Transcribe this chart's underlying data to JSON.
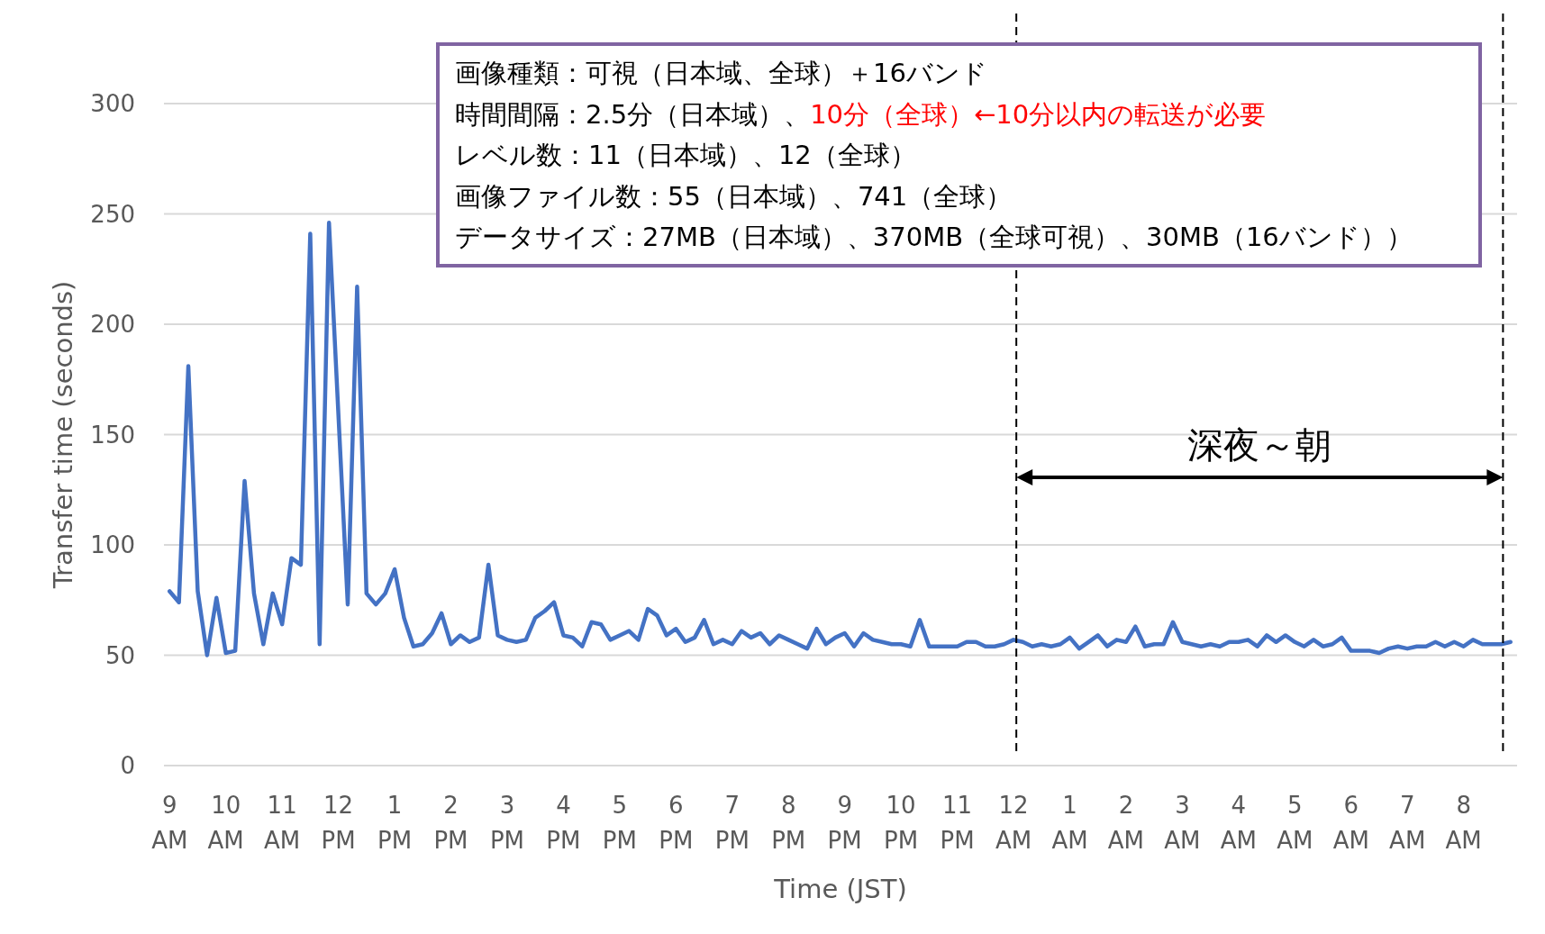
{
  "chart_data": {
    "type": "line",
    "xlabel": "Time (JST)",
    "ylabel": "Transfer time (seconds)",
    "grid": "y",
    "xlim": [
      "--01-22T08:54",
      "--01-23T08:57"
    ],
    "ylim": [
      0,
      300
    ],
    "yticks": [
      0,
      50,
      100,
      150,
      200,
      250,
      300
    ],
    "xticks": [
      {
        "value": "--01-22T09:00",
        "label": "9 AM"
      },
      {
        "value": "--01-22T10:00",
        "label": "10 AM"
      },
      {
        "value": "--01-22T11:00",
        "label": "11 AM"
      },
      {
        "value": "--01-22T12:00",
        "label": "12 PM"
      },
      {
        "value": "--01-22T13:00",
        "label": "1 PM"
      },
      {
        "value": "--01-22T14:00",
        "label": "2 PM"
      },
      {
        "value": "--01-22T15:00",
        "label": "3 PM"
      },
      {
        "value": "--01-22T16:00",
        "label": "4 PM"
      },
      {
        "value": "--01-22T17:00",
        "label": "5 PM"
      },
      {
        "value": "--01-22T18:00",
        "label": "6 PM"
      },
      {
        "value": "--01-22T19:00",
        "label": "7 PM"
      },
      {
        "value": "--01-22T20:00",
        "label": "8 PM"
      },
      {
        "value": "--01-22T21:00",
        "label": "9 PM"
      },
      {
        "value": "--01-22T22:00",
        "label": "10 PM"
      },
      {
        "value": "--01-22T23:00",
        "label": "11 PM"
      },
      {
        "value": "--01-23T00:00",
        "label": "12 AM"
      },
      {
        "value": "--01-23T01:00",
        "label": "1 AM"
      },
      {
        "value": "--01-23T02:00",
        "label": "2 AM"
      },
      {
        "value": "--01-23T03:00",
        "label": "3 AM"
      },
      {
        "value": "--01-23T04:00",
        "label": "4 AM"
      },
      {
        "value": "--01-23T05:00",
        "label": "5 AM"
      },
      {
        "value": "--01-23T06:00",
        "label": "6 AM"
      },
      {
        "value": "--01-23T07:00",
        "label": "7 AM"
      },
      {
        "value": "--01-23T08:00",
        "label": "8 AM"
      }
    ],
    "series": [
      {
        "color": "#4472c4",
        "x": [
          "--01-22T09:00",
          "--01-22T09:10",
          "--01-22T09:20",
          "--01-22T09:30",
          "--01-22T09:40",
          "--01-22T09:50",
          "--01-22T10:00",
          "--01-22T10:10",
          "--01-22T10:20",
          "--01-22T10:30",
          "--01-22T10:40",
          "--01-22T10:50",
          "--01-22T11:00",
          "--01-22T11:10",
          "--01-22T11:20",
          "--01-22T11:30",
          "--01-22T11:40",
          "--01-22T11:50",
          "--01-22T12:10",
          "--01-22T12:20",
          "--01-22T12:30",
          "--01-22T12:40",
          "--01-22T12:50",
          "--01-22T13:00",
          "--01-22T13:10",
          "--01-22T13:20",
          "--01-22T13:30",
          "--01-22T13:40",
          "--01-22T13:50",
          "--01-22T14:00",
          "--01-22T14:10",
          "--01-22T14:20",
          "--01-22T14:30",
          "--01-22T14:40",
          "--01-22T14:50",
          "--01-22T15:00",
          "--01-22T15:10",
          "--01-22T15:20",
          "--01-22T15:30",
          "--01-22T15:40",
          "--01-22T15:50",
          "--01-22T16:00",
          "--01-22T16:10",
          "--01-22T16:20",
          "--01-22T16:30",
          "--01-22T16:40",
          "--01-22T16:50",
          "--01-22T17:00",
          "--01-22T17:10",
          "--01-22T17:20",
          "--01-22T17:30",
          "--01-22T17:40",
          "--01-22T17:50",
          "--01-22T18:00",
          "--01-22T18:10",
          "--01-22T18:20",
          "--01-22T18:30",
          "--01-22T18:40",
          "--01-22T18:50",
          "--01-22T19:00",
          "--01-22T19:10",
          "--01-22T19:20",
          "--01-22T19:30",
          "--01-22T19:40",
          "--01-22T19:50",
          "--01-22T20:00",
          "--01-22T20:10",
          "--01-22T20:20",
          "--01-22T20:30",
          "--01-22T20:40",
          "--01-22T20:50",
          "--01-22T21:00",
          "--01-22T21:10",
          "--01-22T21:20",
          "--01-22T21:30",
          "--01-22T21:40",
          "--01-22T21:50",
          "--01-22T22:00",
          "--01-22T22:10",
          "--01-22T22:20",
          "--01-22T22:30",
          "--01-22T22:40",
          "--01-22T22:50",
          "--01-22T23:00",
          "--01-22T23:10",
          "--01-22T23:20",
          "--01-22T23:30",
          "--01-22T23:40",
          "--01-22T23:50",
          "--01-23T00:00",
          "--01-23T00:10",
          "--01-23T00:20",
          "--01-23T00:30",
          "--01-23T00:40",
          "--01-23T00:50",
          "--01-23T01:00",
          "--01-23T01:10",
          "--01-23T01:20",
          "--01-23T01:30",
          "--01-23T01:40",
          "--01-23T01:50",
          "--01-23T02:00",
          "--01-23T02:10",
          "--01-23T02:20",
          "--01-23T02:30",
          "--01-23T02:40",
          "--01-23T02:50",
          "--01-23T03:00",
          "--01-23T03:10",
          "--01-23T03:20",
          "--01-23T03:30",
          "--01-23T03:40",
          "--01-23T03:50",
          "--01-23T04:00",
          "--01-23T04:10",
          "--01-23T04:20",
          "--01-23T04:30",
          "--01-23T04:40",
          "--01-23T04:50",
          "--01-23T05:00",
          "--01-23T05:10",
          "--01-23T05:20",
          "--01-23T05:30",
          "--01-23T05:40",
          "--01-23T05:50",
          "--01-23T06:00",
          "--01-23T06:10",
          "--01-23T06:20",
          "--01-23T06:30",
          "--01-23T06:40",
          "--01-23T06:50",
          "--01-23T07:00",
          "--01-23T07:10",
          "--01-23T07:20",
          "--01-23T07:30",
          "--01-23T07:40",
          "--01-23T07:50",
          "--01-23T08:00",
          "--01-23T08:10",
          "--01-23T08:20",
          "--01-23T08:30",
          "--01-23T08:40",
          "--01-23T08:50"
        ],
        "values": [
          79,
          74,
          181,
          79,
          50,
          76,
          51,
          52,
          129,
          78,
          55,
          78,
          64,
          94,
          91,
          241,
          55,
          246,
          73,
          217,
          78,
          73,
          78,
          89,
          67,
          54,
          55,
          60,
          69,
          55,
          59,
          56,
          58,
          91,
          59,
          57,
          56,
          57,
          67,
          70,
          74,
          59,
          58,
          54,
          65,
          64,
          57,
          59,
          61,
          57,
          71,
          68,
          59,
          62,
          56,
          58,
          66,
          55,
          57,
          55,
          61,
          58,
          60,
          55,
          59,
          57,
          55,
          53,
          62,
          55,
          58,
          60,
          54,
          60,
          57,
          56,
          55,
          55,
          54,
          66,
          54,
          54,
          54,
          54,
          56,
          56,
          54,
          54,
          55,
          57,
          56,
          54,
          55,
          54,
          55,
          58,
          53,
          56,
          59,
          54,
          57,
          56,
          63,
          54,
          55,
          55,
          65,
          56,
          55,
          54,
          55,
          54,
          56,
          56,
          57,
          54,
          59,
          56,
          59,
          56,
          54,
          57,
          54,
          55,
          58,
          52,
          52,
          52,
          51,
          53,
          54,
          53,
          54,
          54,
          56,
          54,
          56,
          54,
          57,
          55,
          55,
          55,
          56
        ]
      }
    ],
    "ref_lines": [
      {
        "axis": "x",
        "value": "--01-23T00:03",
        "color": "#000000",
        "line_style": "dashed"
      },
      {
        "axis": "x",
        "value": "--01-23T08:42",
        "color": "#000000",
        "line_style": "dashed"
      }
    ],
    "annotations": [
      "深夜～朝",
      "画像種類：可視（日本域、全球）＋16バンド",
      "時間間隔：2.5分（日本域）、",
      "10分（全球）←10分以内の転送が必要",
      "レベル数：11（日本域）、12（全球）",
      "画像ファイル数：55（日本域）、741（全球）",
      "データサイズ：27MB（日本域）、370MB（全球可視）、30MB（16バンド））"
    ]
  }
}
